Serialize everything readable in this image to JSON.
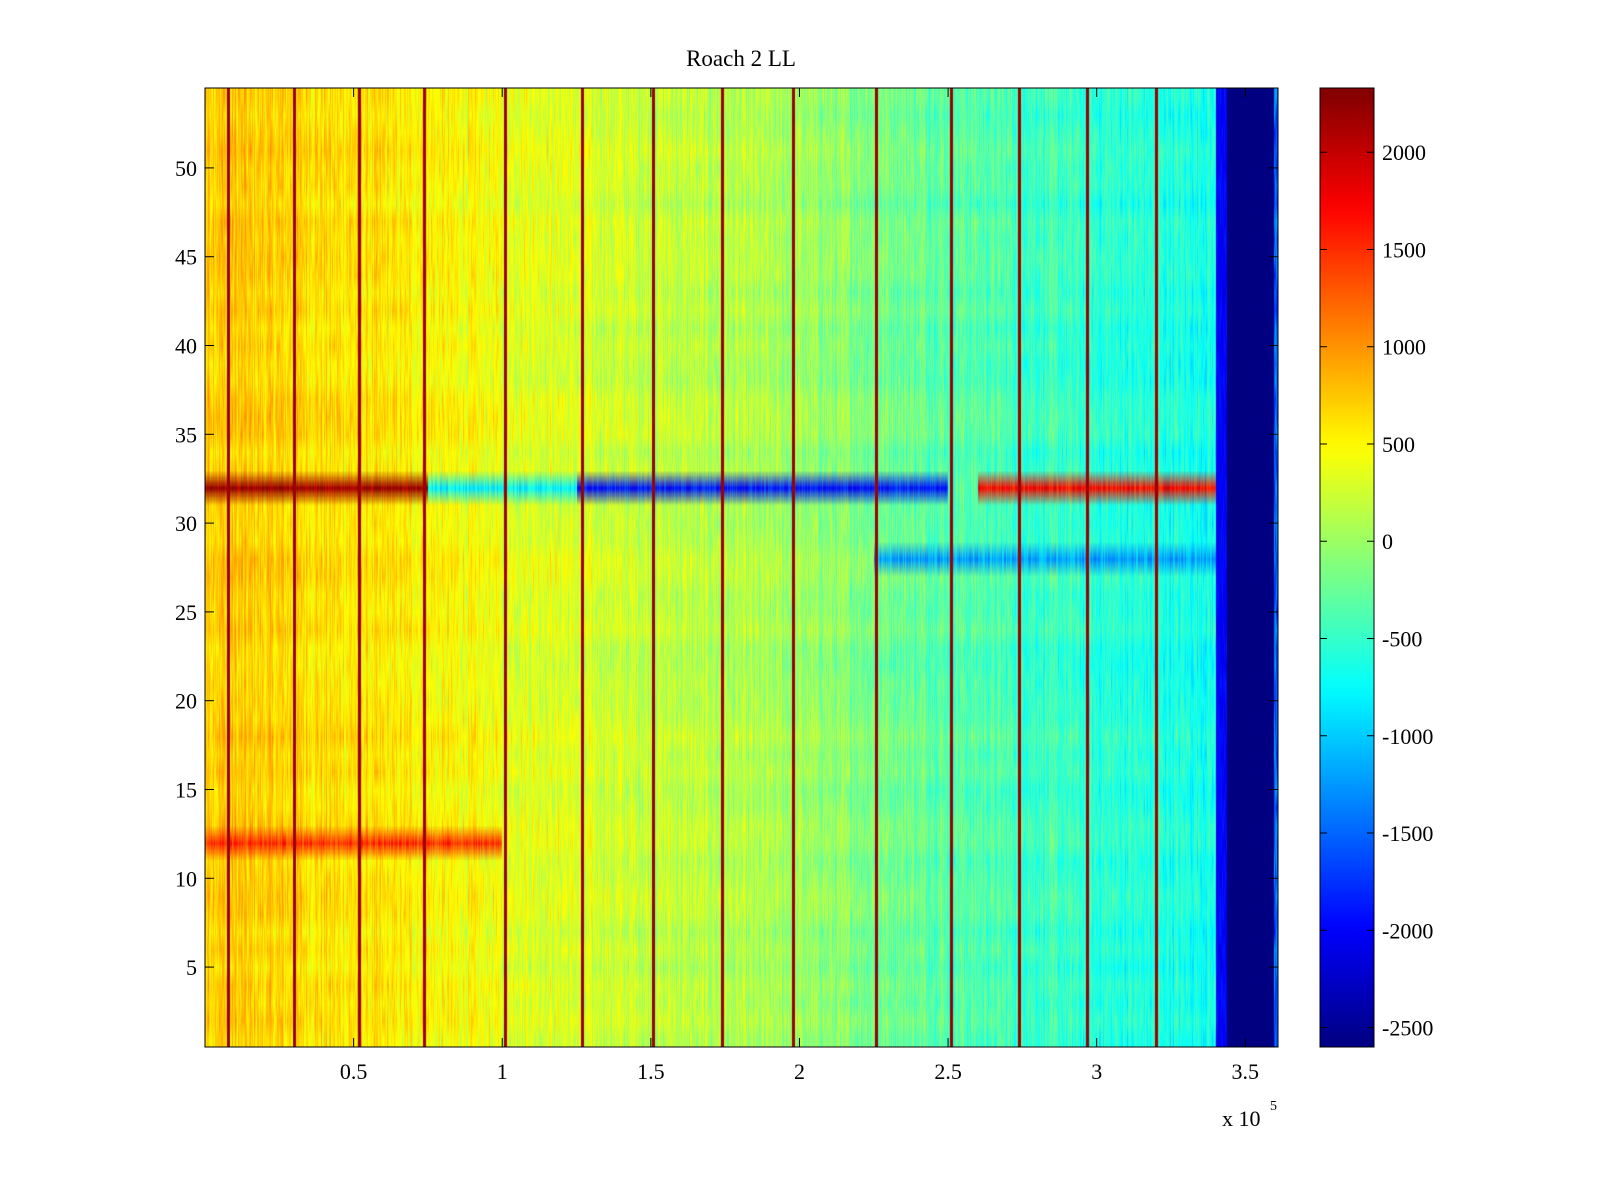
{
  "chart_data": {
    "type": "heatmap",
    "title": "Roach 2 LL",
    "xlabel": "",
    "ylabel": "",
    "x_multiplier_base": "x 10",
    "x_multiplier_exponent": "5",
    "xlim": [
      0,
      361000
    ],
    "ylim": [
      0.5,
      54.5
    ],
    "x_ticks": [
      0.5,
      1,
      1.5,
      2,
      2.5,
      3,
      3.5
    ],
    "x_tick_labels": [
      "0.5",
      "1",
      "1.5",
      "2",
      "2.5",
      "3",
      "3.5"
    ],
    "y_ticks": [
      5,
      10,
      15,
      20,
      25,
      30,
      35,
      40,
      45,
      50
    ],
    "y_tick_labels": [
      "5",
      "10",
      "15",
      "20",
      "25",
      "30",
      "35",
      "40",
      "45",
      "50"
    ],
    "colorbar": {
      "colormap": "jet",
      "range": [
        -2600,
        2330
      ],
      "ticks": [
        2000,
        1500,
        1000,
        500,
        0,
        -500,
        -1000,
        -1500,
        -2000,
        -2500
      ],
      "tick_labels": [
        "2000",
        "1500",
        "1000",
        "500",
        "0",
        "-500",
        "-1000",
        "-1500",
        "-2000",
        "-2500"
      ]
    },
    "rows": 54,
    "grid": false,
    "description_of_values": {
      "background_trend_x": [
        0,
        50000,
        100000,
        150000,
        200000,
        250000,
        300000,
        340000
      ],
      "background_trend_value": [
        750,
        600,
        400,
        200,
        0,
        -300,
        -550,
        -650
      ],
      "low_value_region_x": [
        344000,
        361000
      ],
      "low_value_region_value": -2600,
      "high_value_lines_x": [
        8000,
        30000,
        52000,
        74000,
        101000,
        127000,
        151000,
        174000,
        198000,
        226000,
        251000,
        274000,
        297000,
        320000
      ],
      "high_value_lines_value": 2200,
      "row_32_segments": [
        {
          "x": [
            0,
            75000
          ],
          "value": 2200
        },
        {
          "x": [
            75000,
            125000
          ],
          "value": -800
        },
        {
          "x": [
            125000,
            250000
          ],
          "value": -1900
        },
        {
          "x": [
            260000,
            340000
          ],
          "value": 1700
        }
      ],
      "row_12_segments": [
        {
          "x": [
            0,
            100000
          ],
          "value": 1500
        }
      ],
      "row_28_segments": [
        {
          "x": [
            225000,
            344000
          ],
          "value": -1200
        }
      ]
    }
  }
}
